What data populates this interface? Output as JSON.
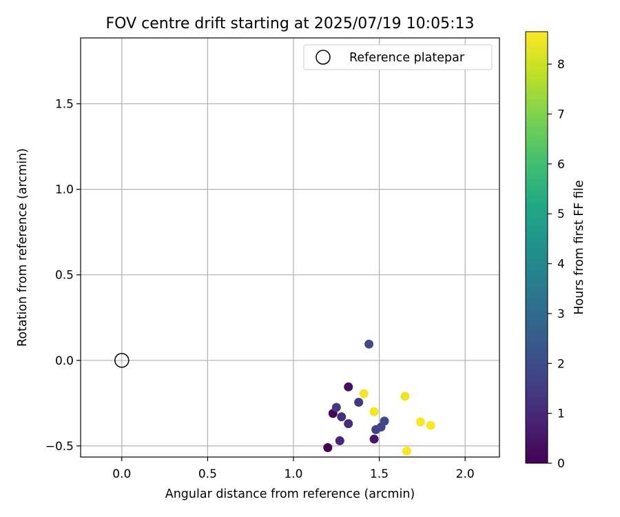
{
  "chart_data": {
    "type": "scatter",
    "title": "FOV centre drift starting at 2025/07/19 10:05:13",
    "xlabel": "Angular distance from reference (arcmin)",
    "ylabel": "Rotation from reference (arcmin)",
    "xlim": [
      -0.24,
      2.2
    ],
    "ylim": [
      -0.565,
      1.885
    ],
    "xticks": [
      0.0,
      0.5,
      1.0,
      1.5,
      2.0
    ],
    "xtick_labels": [
      "0.0",
      "0.5",
      "1.0",
      "1.5",
      "2.0"
    ],
    "yticks": [
      -0.5,
      0.0,
      0.5,
      1.0,
      1.5
    ],
    "ytick_labels": [
      "−0.5",
      "0.0",
      "0.5",
      "1.0",
      "1.5"
    ],
    "grid": true,
    "legend": {
      "position": "top-right",
      "entries": [
        "Reference platepar"
      ]
    },
    "reference_point": {
      "name": "Reference platepar",
      "x": 0.0,
      "y": 0.0
    },
    "colorbar": {
      "label": "Hours from first FF file",
      "colormap": "viridis",
      "range": [
        0,
        8.65
      ],
      "ticks": [
        0,
        1,
        2,
        3,
        4,
        5,
        6,
        7,
        8
      ],
      "tick_labels": [
        "0",
        "1",
        "2",
        "3",
        "4",
        "5",
        "6",
        "7",
        "8"
      ]
    },
    "points": [
      {
        "x": 1.2,
        "y": -0.51,
        "hours": 0.0
      },
      {
        "x": 1.23,
        "y": -0.31,
        "hours": 0.1
      },
      {
        "x": 1.32,
        "y": -0.155,
        "hours": 0.3
      },
      {
        "x": 1.47,
        "y": -0.46,
        "hours": 0.5
      },
      {
        "x": 1.27,
        "y": -0.47,
        "hours": 0.9
      },
      {
        "x": 1.32,
        "y": -0.37,
        "hours": 1.1
      },
      {
        "x": 1.28,
        "y": -0.33,
        "hours": 1.2
      },
      {
        "x": 1.38,
        "y": -0.245,
        "hours": 1.4
      },
      {
        "x": 1.25,
        "y": -0.275,
        "hours": 1.5
      },
      {
        "x": 1.48,
        "y": -0.405,
        "hours": 1.6
      },
      {
        "x": 1.51,
        "y": -0.39,
        "hours": 1.8
      },
      {
        "x": 1.53,
        "y": -0.355,
        "hours": 1.9
      },
      {
        "x": 1.44,
        "y": 0.095,
        "hours": 2.0
      },
      {
        "x": 1.41,
        "y": -0.195,
        "hours": 8.5
      },
      {
        "x": 1.47,
        "y": -0.3,
        "hours": 8.5
      },
      {
        "x": 1.65,
        "y": -0.21,
        "hours": 8.4
      },
      {
        "x": 1.74,
        "y": -0.36,
        "hours": 8.6
      },
      {
        "x": 1.8,
        "y": -0.38,
        "hours": 8.6
      },
      {
        "x": 1.66,
        "y": -0.53,
        "hours": 8.6
      }
    ]
  }
}
